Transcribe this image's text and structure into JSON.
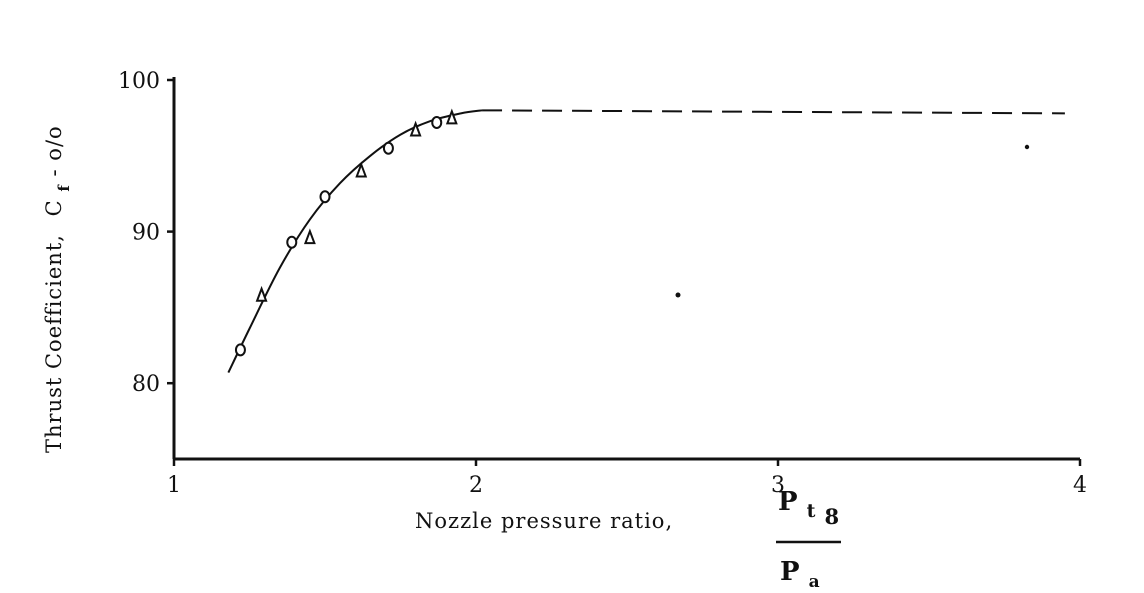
{
  "chart_data": {
    "type": "scatter",
    "title": "",
    "xlabel": "Nozzle pressure ratio,",
    "xlabel_fraction": {
      "numerator": {
        "symbol": "P",
        "subscript": "t",
        "sub_subscript": "8"
      },
      "denominator": {
        "symbol": "P",
        "subscript": "a"
      }
    },
    "ylabel": "Thrust Coefficient,",
    "ylabel_symbol": {
      "symbol": "C",
      "subscript": "f",
      "suffix": " - o/o"
    },
    "xlim": [
      1,
      4
    ],
    "ylim": [
      75,
      100
    ],
    "x_ticks": [
      "1",
      "2",
      "3",
      "4"
    ],
    "y_ticks": [
      "80",
      "90",
      "100"
    ],
    "grid": false,
    "series": [
      {
        "marker": "circle",
        "points": [
          [
            1.22,
            82.2
          ],
          [
            1.39,
            89.3
          ],
          [
            1.5,
            92.3
          ],
          [
            1.71,
            95.5
          ],
          [
            1.87,
            97.2
          ]
        ]
      },
      {
        "marker": "triangle",
        "points": [
          [
            1.29,
            85.8
          ],
          [
            1.45,
            89.6
          ],
          [
            1.62,
            94.0
          ],
          [
            1.8,
            96.7
          ],
          [
            1.92,
            97.5
          ]
        ]
      }
    ],
    "fit_curve": {
      "style": "solid",
      "points": [
        [
          1.18,
          80.7
        ],
        [
          1.25,
          83.6
        ],
        [
          1.35,
          87.6
        ],
        [
          1.45,
          90.8
        ],
        [
          1.55,
          93.2
        ],
        [
          1.65,
          95.0
        ],
        [
          1.75,
          96.4
        ],
        [
          1.85,
          97.3
        ],
        [
          1.95,
          97.8
        ],
        [
          2.02,
          98.0
        ]
      ]
    },
    "extrapolation": {
      "style": "dashed",
      "points": [
        [
          2.02,
          98.0
        ],
        [
          3.95,
          97.8
        ]
      ]
    }
  }
}
